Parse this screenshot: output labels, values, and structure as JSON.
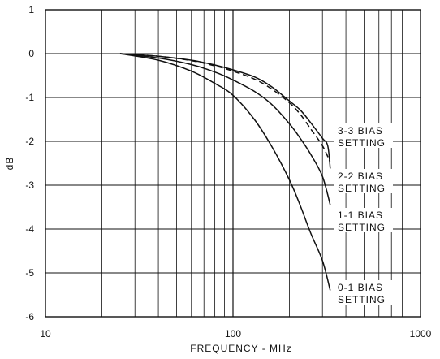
{
  "chart_data": {
    "type": "line",
    "xlabel": "FREQUENCY - MHz",
    "ylabel": "dB",
    "xscale": "log",
    "xlim": [
      10,
      1000
    ],
    "ylim": [
      -6,
      1
    ],
    "x_ticks": [
      10,
      100,
      1000
    ],
    "x_tick_labels": [
      "10",
      "100",
      "1000"
    ],
    "y_ticks": [
      1,
      0,
      -1,
      -2,
      -3,
      -4,
      -5,
      -6
    ],
    "y_tick_labels": [
      "1",
      "0",
      "-1",
      "-2",
      "-3",
      "-4",
      "-5",
      "-6"
    ],
    "grid": true,
    "series": [
      {
        "name": "3-3 BIAS SETTING",
        "label_lines": [
          "3-3 BIAS",
          "SETTING"
        ],
        "style": "solid",
        "points": [
          [
            25,
            0
          ],
          [
            40,
            -0.06
          ],
          [
            60,
            -0.15
          ],
          [
            80,
            -0.26
          ],
          [
            100,
            -0.37
          ],
          [
            130,
            -0.53
          ],
          [
            160,
            -0.75
          ],
          [
            200,
            -1.08
          ],
          [
            230,
            -1.3
          ],
          [
            260,
            -1.58
          ],
          [
            300,
            -1.93
          ],
          [
            320,
            -2.1
          ],
          [
            330,
            -2.62
          ]
        ]
      },
      {
        "name": "2-2 BIAS SETTING",
        "label_lines": [
          "2-2 BIAS",
          "SETTING"
        ],
        "style": "dashed",
        "points": [
          [
            25,
            0
          ],
          [
            40,
            -0.06
          ],
          [
            60,
            -0.16
          ],
          [
            80,
            -0.28
          ],
          [
            100,
            -0.4
          ],
          [
            130,
            -0.58
          ],
          [
            160,
            -0.8
          ],
          [
            200,
            -1.12
          ],
          [
            230,
            -1.4
          ],
          [
            260,
            -1.72
          ],
          [
            300,
            -2.1
          ],
          [
            330,
            -2.48
          ]
        ]
      },
      {
        "name": "1-1 BIAS SETTING",
        "label_lines": [
          "1-1 BIAS",
          "SETTING"
        ],
        "style": "solid",
        "points": [
          [
            25,
            0
          ],
          [
            40,
            -0.1
          ],
          [
            60,
            -0.25
          ],
          [
            80,
            -0.42
          ],
          [
            100,
            -0.6
          ],
          [
            130,
            -0.86
          ],
          [
            160,
            -1.15
          ],
          [
            200,
            -1.6
          ],
          [
            230,
            -1.95
          ],
          [
            260,
            -2.3
          ],
          [
            300,
            -2.8
          ],
          [
            330,
            -3.45
          ]
        ]
      },
      {
        "name": "0-1 BIAS SETTING",
        "label_lines": [
          "0-1 BIAS",
          "SETTING"
        ],
        "style": "solid",
        "points": [
          [
            25,
            0
          ],
          [
            40,
            -0.15
          ],
          [
            60,
            -0.4
          ],
          [
            80,
            -0.68
          ],
          [
            100,
            -0.95
          ],
          [
            130,
            -1.5
          ],
          [
            160,
            -2.1
          ],
          [
            200,
            -2.88
          ],
          [
            230,
            -3.5
          ],
          [
            260,
            -4.1
          ],
          [
            300,
            -4.72
          ],
          [
            330,
            -5.4
          ]
        ]
      }
    ]
  }
}
